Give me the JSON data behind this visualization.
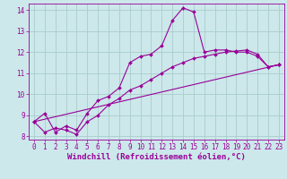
{
  "background_color": "#cce8ea",
  "grid_color": "#aacccc",
  "line_color": "#990099",
  "marker_color": "#990099",
  "xlabel": "Windchill (Refroidissement éolien,°C)",
  "xlim": [
    -0.5,
    23.5
  ],
  "ylim": [
    7.85,
    14.3
  ],
  "yticks": [
    8,
    9,
    10,
    11,
    12,
    13,
    14
  ],
  "xticks": [
    0,
    1,
    2,
    3,
    4,
    5,
    6,
    7,
    8,
    9,
    10,
    11,
    12,
    13,
    14,
    15,
    16,
    17,
    18,
    19,
    20,
    21,
    22,
    23
  ],
  "series1_x": [
    0,
    1,
    2,
    3,
    4,
    5,
    6,
    7,
    8,
    9,
    10,
    11,
    12,
    13,
    14,
    15,
    16,
    17,
    18,
    19,
    20,
    21,
    22,
    23
  ],
  "series1_y": [
    8.7,
    9.1,
    8.2,
    8.5,
    8.3,
    9.1,
    9.7,
    9.9,
    10.3,
    11.5,
    11.8,
    11.9,
    12.3,
    13.5,
    14.1,
    13.9,
    12.0,
    12.1,
    12.1,
    12.0,
    12.0,
    11.8,
    11.3,
    11.4
  ],
  "series2_x": [
    0,
    1,
    2,
    3,
    4,
    5,
    6,
    7,
    8,
    9,
    10,
    11,
    12,
    13,
    14,
    15,
    16,
    17,
    18,
    19,
    20,
    21,
    22,
    23
  ],
  "series2_y": [
    8.7,
    8.2,
    8.4,
    8.3,
    8.1,
    8.7,
    9.0,
    9.5,
    9.8,
    10.2,
    10.4,
    10.7,
    11.0,
    11.3,
    11.5,
    11.7,
    11.8,
    11.9,
    12.0,
    12.05,
    12.1,
    11.9,
    11.3,
    11.4
  ],
  "series3_x": [
    0,
    23
  ],
  "series3_y": [
    8.7,
    11.4
  ],
  "tick_fontsize": 5.5,
  "xlabel_fontsize": 6.5
}
